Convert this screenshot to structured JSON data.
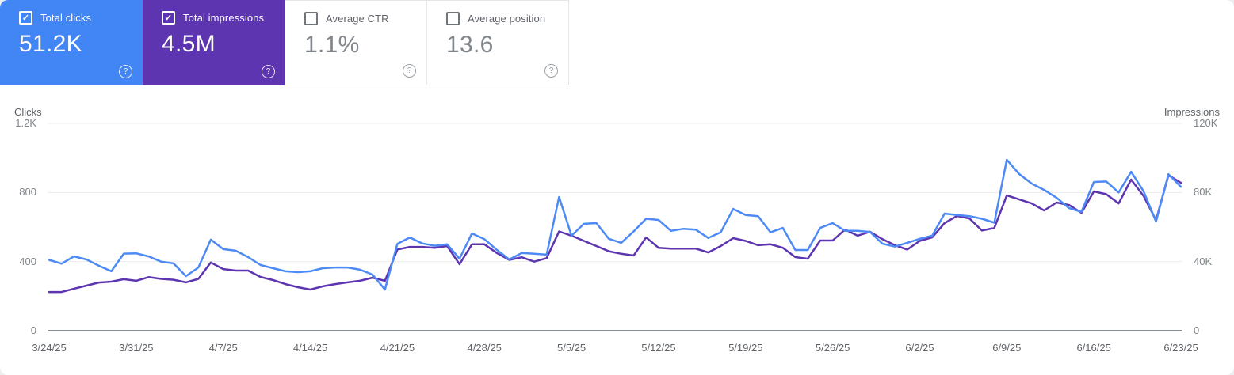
{
  "icons": {
    "check": "✓",
    "help": "?"
  },
  "cards": [
    {
      "label": "Total clicks",
      "value": "51.2K",
      "selected": true,
      "color": "#4285f4"
    },
    {
      "label": "Total impressions",
      "value": "4.5M",
      "selected": true,
      "color": "#5e35b1"
    },
    {
      "label": "Average CTR",
      "value": "1.1%",
      "selected": false,
      "color": "#ffffff"
    },
    {
      "label": "Average position",
      "value": "13.6",
      "selected": false,
      "color": "#ffffff"
    }
  ],
  "chart_data": {
    "type": "line",
    "frequency": "daily",
    "date_start": "3/24/25",
    "date_end": "6/23/25",
    "grid": true,
    "legend_position": "none",
    "x_tick_labels": [
      "3/24/25",
      "3/31/25",
      "4/7/25",
      "4/14/25",
      "4/21/25",
      "4/28/25",
      "5/5/25",
      "5/12/25",
      "5/19/25",
      "5/26/25",
      "6/2/25",
      "6/9/25",
      "6/16/25",
      "6/23/25"
    ],
    "x_tick_day_indices": [
      0,
      7,
      14,
      21,
      28,
      35,
      42,
      49,
      56,
      63,
      70,
      77,
      84,
      91
    ],
    "left_axis": {
      "title": "Clicks",
      "ticks": [
        "1.2K",
        "800",
        "400",
        "0"
      ],
      "tick_values": [
        1200,
        800,
        400,
        0
      ],
      "range": [
        0,
        1200
      ]
    },
    "right_axis": {
      "title": "Impressions",
      "ticks": [
        "120K",
        "80K",
        "40K",
        "0"
      ],
      "tick_values": [
        120000,
        80000,
        40000,
        0
      ],
      "range": [
        0,
        120000
      ]
    },
    "series": [
      {
        "name": "Clicks",
        "axis": "left",
        "color": "#4d8af5",
        "values": [
          410,
          388,
          430,
          412,
          376,
          344,
          446,
          448,
          430,
          400,
          390,
          316,
          366,
          527,
          472,
          463,
          426,
          380,
          362,
          344,
          339,
          344,
          362,
          366,
          366,
          353,
          325,
          238,
          503,
          540,
          505,
          492,
          500,
          417,
          563,
          530,
          468,
          412,
          450,
          445,
          440,
          774,
          550,
          619,
          623,
          532,
          509,
          575,
          648,
          641,
          578,
          590,
          585,
          537,
          570,
          705,
          670,
          663,
          570,
          595,
          467,
          467,
          595,
          623,
          578,
          578,
          572,
          504,
          487,
          509,
          532,
          550,
          678,
          670,
          663,
          648,
          625,
          990,
          907,
          852,
          815,
          770,
          710,
          688,
          861,
          864,
          800,
          920,
          807,
          632,
          906,
          833
        ]
      },
      {
        "name": "Impressions",
        "axis": "right",
        "color": "#5e35b1",
        "values": [
          22400,
          22400,
          24300,
          26100,
          27900,
          28400,
          29800,
          28900,
          31000,
          30000,
          29500,
          28000,
          30000,
          39500,
          35700,
          34800,
          34800,
          31100,
          29300,
          27000,
          25200,
          23800,
          25700,
          27000,
          28000,
          28900,
          30700,
          28900,
          47000,
          48500,
          48500,
          48000,
          49000,
          38500,
          50000,
          50000,
          45000,
          41000,
          42500,
          40000,
          42000,
          57500,
          55000,
          52000,
          49000,
          46000,
          44500,
          43500,
          54000,
          48000,
          47500,
          47500,
          47500,
          45300,
          49000,
          53600,
          52000,
          49500,
          50000,
          48000,
          42600,
          41700,
          52200,
          52200,
          58600,
          55000,
          57300,
          53000,
          49500,
          47000,
          52000,
          54000,
          62300,
          66400,
          65000,
          58000,
          59500,
          78300,
          76000,
          73700,
          69600,
          74200,
          72800,
          68200,
          80600,
          79000,
          73700,
          87500,
          78000,
          64000,
          90000,
          85600
        ]
      }
    ]
  }
}
